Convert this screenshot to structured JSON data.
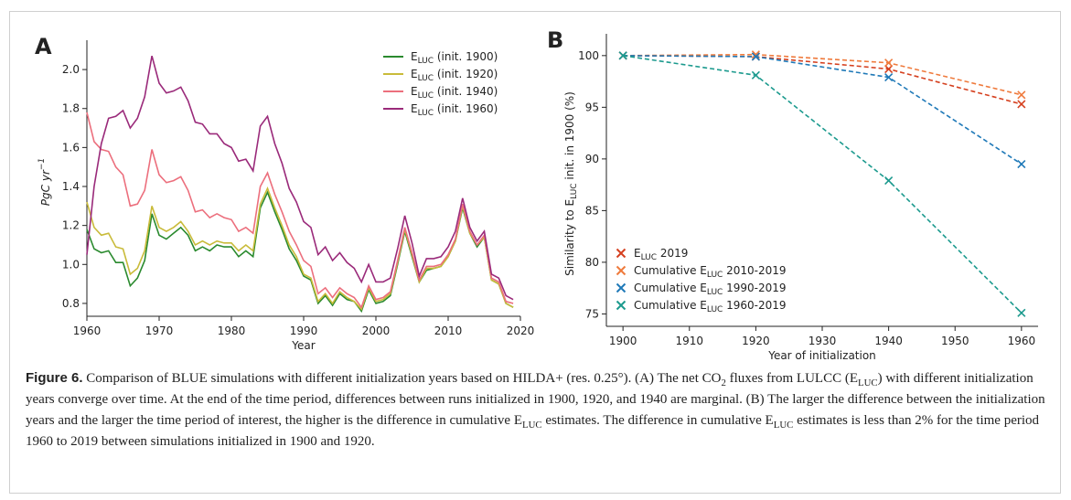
{
  "chart_data": [
    {
      "type": "line",
      "panel_label": "A",
      "xlabel": "Year",
      "ylabel": "PgC yr^−1",
      "x": [
        1960,
        1961,
        1962,
        1963,
        1964,
        1965,
        1966,
        1967,
        1968,
        1969,
        1970,
        1971,
        1972,
        1973,
        1974,
        1975,
        1976,
        1977,
        1978,
        1979,
        1980,
        1981,
        1982,
        1983,
        1984,
        1985,
        1986,
        1987,
        1988,
        1989,
        1990,
        1991,
        1992,
        1993,
        1994,
        1995,
        1996,
        1997,
        1998,
        1999,
        2000,
        2001,
        2002,
        2003,
        2004,
        2005,
        2006,
        2007,
        2008,
        2009,
        2010,
        2011,
        2012,
        2013,
        2014,
        2015,
        2016,
        2017,
        2018,
        2019
      ],
      "xlim": [
        1960,
        2020
      ],
      "xticks": [
        1960,
        1970,
        1980,
        1990,
        2000,
        2010,
        2020
      ],
      "ylim": [
        0.734,
        2.113
      ],
      "yticks": [
        {
          "value": 0.8,
          "label": "0.8"
        },
        {
          "value": 1.0,
          "label": "1.0"
        },
        {
          "value": 1.2,
          "label": "1.2"
        },
        {
          "value": 1.4,
          "label": "1.4"
        },
        {
          "value": 1.6,
          "label": "1.6"
        },
        {
          "value": 1.8,
          "label": "1.8"
        },
        {
          "value": 2.0,
          "label": "2.0"
        }
      ],
      "legend": "upper right",
      "linestyle": "solid",
      "series": [
        {
          "name": "E_LUC (init. 1900)",
          "color": "#2a8a2e",
          "values": [
            1.18,
            1.08,
            1.06,
            1.07,
            1.01,
            1.01,
            0.89,
            0.93,
            1.02,
            1.26,
            1.15,
            1.13,
            1.16,
            1.19,
            1.15,
            1.07,
            1.09,
            1.07,
            1.1,
            1.09,
            1.09,
            1.04,
            1.07,
            1.04,
            1.29,
            1.37,
            1.27,
            1.18,
            1.08,
            1.02,
            0.94,
            0.92,
            0.8,
            0.84,
            0.79,
            0.85,
            0.82,
            0.81,
            0.76,
            0.87,
            0.8,
            0.81,
            0.84,
            1.0,
            1.17,
            1.04,
            0.91,
            0.97,
            0.98,
            0.99,
            1.04,
            1.12,
            1.29,
            1.16,
            1.09,
            1.14,
            0.92,
            0.9,
            0.8,
            0.78
          ]
        },
        {
          "name": "E_LUC (init. 1920)",
          "color": "#c9bb3a",
          "values": [
            1.32,
            1.19,
            1.15,
            1.16,
            1.09,
            1.08,
            0.95,
            0.98,
            1.07,
            1.3,
            1.19,
            1.17,
            1.19,
            1.22,
            1.17,
            1.1,
            1.12,
            1.1,
            1.12,
            1.11,
            1.11,
            1.07,
            1.1,
            1.07,
            1.31,
            1.39,
            1.29,
            1.2,
            1.1,
            1.04,
            0.95,
            0.93,
            0.81,
            0.85,
            0.8,
            0.86,
            0.83,
            0.81,
            0.77,
            0.88,
            0.81,
            0.82,
            0.85,
            1.01,
            1.18,
            1.05,
            0.91,
            0.98,
            0.98,
            0.99,
            1.04,
            1.12,
            1.3,
            1.16,
            1.1,
            1.14,
            0.92,
            0.9,
            0.8,
            0.78
          ]
        },
        {
          "name": "E_LUC (init. 1940)",
          "color": "#ec6f7d",
          "values": [
            1.78,
            1.63,
            1.59,
            1.58,
            1.5,
            1.46,
            1.3,
            1.31,
            1.38,
            1.59,
            1.46,
            1.42,
            1.43,
            1.45,
            1.38,
            1.27,
            1.28,
            1.24,
            1.26,
            1.24,
            1.23,
            1.17,
            1.19,
            1.16,
            1.4,
            1.47,
            1.36,
            1.27,
            1.17,
            1.1,
            1.02,
            0.99,
            0.85,
            0.88,
            0.83,
            0.88,
            0.85,
            0.83,
            0.78,
            0.89,
            0.82,
            0.83,
            0.86,
            1.02,
            1.19,
            1.06,
            0.92,
            0.99,
            0.99,
            1.0,
            1.05,
            1.13,
            1.31,
            1.17,
            1.1,
            1.15,
            0.93,
            0.91,
            0.81,
            0.8
          ]
        },
        {
          "name": "E_LUC (init. 1960)",
          "color": "#9a2a7a",
          "values": [
            1.05,
            1.4,
            1.62,
            1.75,
            1.76,
            1.79,
            1.7,
            1.75,
            1.86,
            2.07,
            1.93,
            1.88,
            1.89,
            1.91,
            1.84,
            1.73,
            1.72,
            1.67,
            1.67,
            1.62,
            1.6,
            1.53,
            1.54,
            1.48,
            1.71,
            1.76,
            1.62,
            1.52,
            1.39,
            1.32,
            1.22,
            1.19,
            1.05,
            1.09,
            1.02,
            1.06,
            1.01,
            0.98,
            0.91,
            1.0,
            0.91,
            0.91,
            0.93,
            1.08,
            1.25,
            1.11,
            0.94,
            1.03,
            1.03,
            1.04,
            1.09,
            1.17,
            1.34,
            1.19,
            1.12,
            1.17,
            0.95,
            0.93,
            0.84,
            0.82
          ]
        }
      ]
    },
    {
      "type": "line",
      "panel_label": "B",
      "xlabel": "Year of initialization",
      "ylabel": "Similarity to E_LUC init. in 1900 (%)",
      "x": [
        1900,
        1920,
        1940,
        1960
      ],
      "xlim": [
        1897.5,
        1962.5
      ],
      "xticks": [
        1900,
        1910,
        1920,
        1930,
        1940,
        1950,
        1960
      ],
      "ylim": [
        73.8,
        101.4
      ],
      "yticks": [
        75,
        80,
        85,
        90,
        95,
        100
      ],
      "legend": "lower left",
      "linestyle": "dashed",
      "marker": "x",
      "series": [
        {
          "name": "E_LUC 2019",
          "color": "#d5401f",
          "values": [
            100,
            99.9,
            98.7,
            95.3
          ]
        },
        {
          "name": "Cumulative E_LUC 2010-2019",
          "color": "#ef7a3c",
          "values": [
            100,
            100.1,
            99.3,
            96.2
          ]
        },
        {
          "name": "Cumulative E_LUC 1990-2019",
          "color": "#1f79b8",
          "values": [
            100,
            99.9,
            97.9,
            89.5
          ]
        },
        {
          "name": "Cumulative E_LUC 1960-2019",
          "color": "#1c9a8e",
          "values": [
            100,
            98.1,
            87.9,
            75.1
          ]
        }
      ]
    }
  ],
  "caption": {
    "label": "Figure 6.",
    "text": "Comparison of BLUE simulations with different initialization years based on HILDA+ (res. 0.25°). (A) The net CO_2 fluxes from LULCC (E_LUC) with different initialization years converge over time. At the end of the time period, differences between runs initialized in 1900, 1920, and 1940 are marginal. (B) The larger the difference between the initialization years and the larger the time period of interest, the higher is the difference in cumulative E_LUC estimates. The difference in cumulative E_LUC estimates is less than 2% for the time period 1960 to 2019 between simulations initialized in 1900 and 1920."
  }
}
